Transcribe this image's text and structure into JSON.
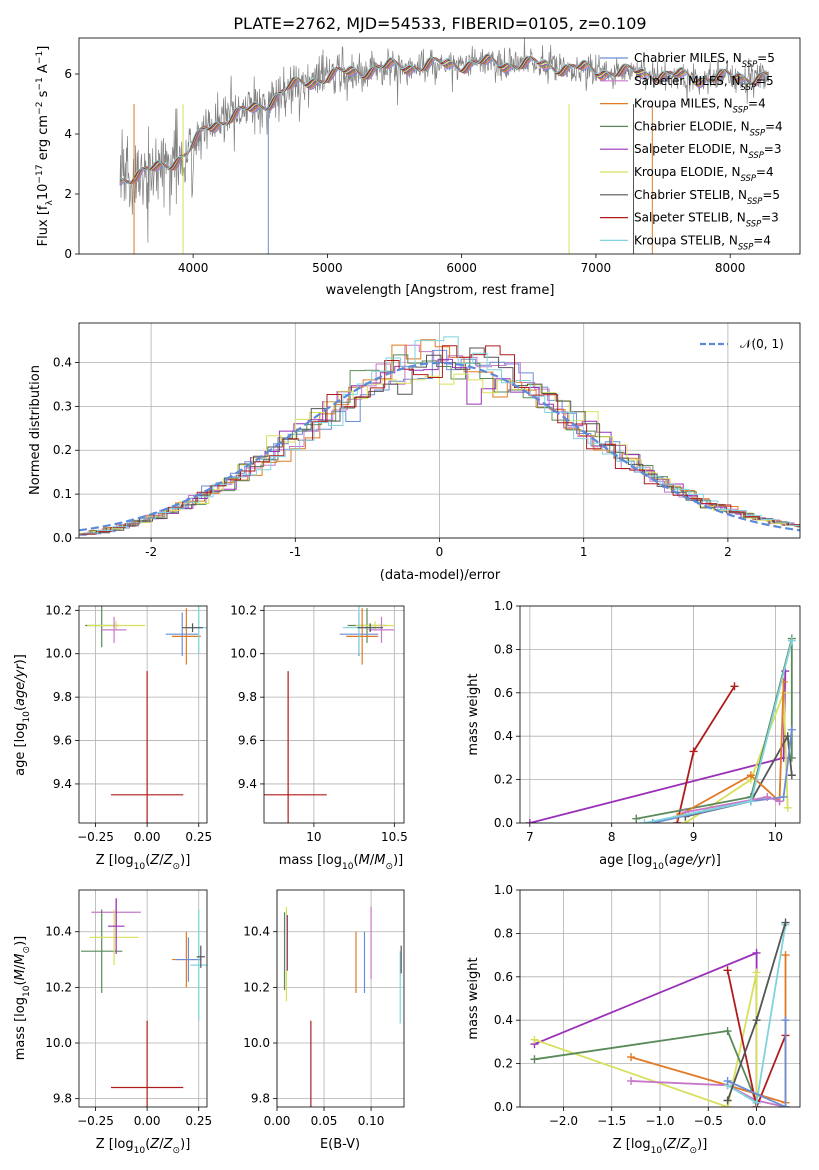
{
  "figure": {
    "title": "PLATE=2762, MJD=54533, FIBERID=0105, z=0.109"
  },
  "colors": {
    "Chabrier MILES": "#6b8ed6",
    "Salpeter MILES": "#c878c8",
    "Kroupa MILES": "#e07a24",
    "Chabrier ELODIE": "#5a8a5a",
    "Salpeter ELODIE": "#9b30b8",
    "Kroupa ELODIE": "#d8e05a",
    "Chabrier STELIB": "#555555",
    "Salpeter STELIB": "#b01c1c",
    "Kroupa STELIB": "#7fd3dc",
    "data": "#808080",
    "normal": "#5b8ad8"
  },
  "chart_data": [
    {
      "type": "line",
      "panel": "spectrum",
      "xlabel": "wavelength [Angstrom, rest frame]",
      "ylabel": "Flux [f_λ 10^-17 erg cm^-2 s^-1 A^-1]",
      "xlim": [
        3150,
        8520
      ],
      "ylim": [
        0,
        7.2
      ],
      "xticks": [
        4000,
        5000,
        6000,
        7000,
        8000
      ],
      "yticks": [
        0,
        2,
        4,
        6
      ],
      "grid": false,
      "legend_position": "right",
      "legend": [
        {
          "label": "Chabrier MILES, N_SSP=5",
          "color": "#6b8ed6"
        },
        {
          "label": "Salpeter MILES, N_SSP=5",
          "color": "#c878c8"
        },
        {
          "label": "Kroupa MILES, N_SSP=4",
          "color": "#e07a24"
        },
        {
          "label": "Chabrier ELODIE, N_SSP=4",
          "color": "#5a8a5a"
        },
        {
          "label": "Salpeter ELODIE, N_SSP=3",
          "color": "#9b30b8"
        },
        {
          "label": "Kroupa ELODIE, N_SSP=4",
          "color": "#d8e05a"
        },
        {
          "label": "Chabrier STELIB, N_SSP=5",
          "color": "#555555"
        },
        {
          "label": "Salpeter STELIB, N_SSP=3",
          "color": "#b01c1c"
        },
        {
          "label": "Kroupa STELIB, N_SSP=4",
          "color": "#7fd3dc"
        }
      ],
      "continuum": {
        "x": [
          3450,
          3600,
          3800,
          3950,
          4100,
          4300,
          4500,
          4700,
          4900,
          5100,
          5400,
          5800,
          6200,
          6600,
          7000,
          7400,
          7800,
          8200,
          8300
        ],
        "y": [
          2.5,
          2.6,
          3.0,
          3.3,
          4.2,
          4.6,
          4.9,
          5.5,
          5.8,
          6.0,
          6.2,
          6.3,
          6.35,
          6.3,
          6.1,
          6.0,
          5.85,
          5.9,
          5.9
        ]
      }
    },
    {
      "type": "bar",
      "panel": "residual_histogram",
      "xlabel": "(data-model)/error",
      "ylabel": "Normed distribution",
      "xlim": [
        -2.5,
        2.5
      ],
      "ylim": [
        0,
        0.49
      ],
      "xticks": [
        -2,
        -1,
        0,
        1,
        2
      ],
      "yticks": [
        0.0,
        0.1,
        0.2,
        0.3,
        0.4
      ],
      "grid": true,
      "legend_position": "top-right",
      "legend": [
        {
          "label": "𝒩(0, 1)",
          "color": "#5b8ad8"
        }
      ],
      "bin_width": 0.1,
      "normal_curve": {
        "mu": 0,
        "sigma": 1
      }
    },
    {
      "type": "scatter",
      "panel": "age_vs_Z",
      "xlabel": "Z [log10(Z/Z⊙)]",
      "ylabel": "age [log10(age/yr)]",
      "xlim": [
        -0.33,
        0.29
      ],
      "ylim": [
        9.22,
        10.22
      ],
      "xticks": [
        -0.25,
        0.0,
        0.25
      ],
      "xticklabels": [
        "−0.25",
        "0.00",
        "0.25"
      ],
      "yticks": [
        9.4,
        9.6,
        9.8,
        10.0,
        10.2
      ],
      "grid": true,
      "points": [
        {
          "series": "Salpeter STELIB",
          "x": 0.0,
          "xerr": 0.175,
          "y": 9.35,
          "yerr": 0.57
        },
        {
          "series": "Chabrier ELODIE",
          "x": -0.22,
          "xerr": 0.08,
          "y": 10.13,
          "yerr": 0.1
        },
        {
          "series": "Kroupa ELODIE",
          "x": -0.15,
          "xerr": 0.14,
          "y": 10.13,
          "yerr": 0.02
        },
        {
          "series": "Salpeter MILES",
          "x": -0.16,
          "xerr": 0.06,
          "y": 10.11,
          "yerr": 0.06
        },
        {
          "series": "Kroupa MILES",
          "x": 0.19,
          "xerr": 0.07,
          "y": 10.08,
          "yerr": 0.13
        },
        {
          "series": "Chabrier MILES",
          "x": 0.17,
          "xerr": 0.08,
          "y": 10.09,
          "yerr": 0.1
        },
        {
          "series": "Kroupa STELIB",
          "x": 0.25,
          "xerr": 0.06,
          "y": 10.12,
          "yerr": 0.12
        },
        {
          "series": "Chabrier STELIB",
          "x": 0.22,
          "xerr": 0.05,
          "y": 10.12,
          "yerr": 0.02
        }
      ]
    },
    {
      "type": "scatter",
      "panel": "age_vs_mass",
      "xlabel": "mass [log10(M/M⊙)]",
      "xlim": [
        9.69,
        10.56
      ],
      "ylim": [
        9.22,
        10.22
      ],
      "xticks": [
        10.0,
        10.5
      ],
      "yticks": [
        9.4,
        9.6,
        9.8,
        10.0,
        10.2
      ],
      "grid": true,
      "points": [
        {
          "series": "Salpeter STELIB",
          "x": 9.84,
          "xerr": 0.24,
          "y": 9.35,
          "yerr": 0.57
        },
        {
          "series": "Chabrier ELODIE",
          "x": 10.33,
          "xerr": 0.12,
          "y": 10.13,
          "yerr": 0.08
        },
        {
          "series": "Kroupa ELODIE",
          "x": 10.38,
          "xerr": 0.12,
          "y": 10.13,
          "yerr": 0.02
        },
        {
          "series": "Salpeter MILES",
          "x": 10.42,
          "xerr": 0.08,
          "y": 10.11,
          "yerr": 0.06
        },
        {
          "series": "Kroupa MILES",
          "x": 10.3,
          "xerr": 0.1,
          "y": 10.08,
          "yerr": 0.13
        },
        {
          "series": "Chabrier MILES",
          "x": 10.28,
          "xerr": 0.12,
          "y": 10.09,
          "yerr": 0.1
        },
        {
          "series": "Kroupa STELIB",
          "x": 10.28,
          "xerr": 0.1,
          "y": 10.12,
          "yerr": 0.12
        },
        {
          "series": "Chabrier STELIB",
          "x": 10.35,
          "xerr": 0.08,
          "y": 10.12,
          "yerr": 0.02
        }
      ]
    },
    {
      "type": "line",
      "panel": "mass_weight_vs_age",
      "xlabel": "age [log10(age/yr)]",
      "ylabel": "mass weight",
      "xlim": [
        6.88,
        10.3
      ],
      "ylim": [
        0,
        1.0
      ],
      "xticks": [
        7,
        8,
        9,
        10
      ],
      "yticks": [
        0.0,
        0.2,
        0.4,
        0.6,
        0.8,
        1.0
      ],
      "grid": true,
      "series": [
        {
          "name": "Salpeter ELODIE",
          "x": [
            7.0,
            10.1,
            10.12
          ],
          "y": [
            0.0,
            0.3,
            0.7
          ]
        },
        {
          "name": "Salpeter STELIB",
          "x": [
            8.8,
            9.0,
            9.5
          ],
          "y": [
            0.0,
            0.33,
            0.63
          ]
        },
        {
          "name": "Kroupa ELODIE",
          "x": [
            8.9,
            9.7,
            10.1,
            10.15
          ],
          "y": [
            0.0,
            0.2,
            0.6,
            0.07
          ]
        },
        {
          "name": "Chabrier STELIB",
          "x": [
            8.9,
            9.7,
            10.15,
            10.2
          ],
          "y": [
            0.03,
            0.1,
            0.4,
            0.22
          ]
        },
        {
          "name": "Chabrier ELODIE",
          "x": [
            8.3,
            9.7,
            10.2,
            10.2
          ],
          "y": [
            0.02,
            0.12,
            0.85,
            0.3
          ]
        },
        {
          "name": "Kroupa MILES",
          "x": [
            8.8,
            9.7,
            10.05,
            10.1
          ],
          "y": [
            0.03,
            0.22,
            0.1,
            0.65
          ]
        },
        {
          "name": "Chabrier MILES",
          "x": [
            8.5,
            9.7,
            10.1,
            10.2
          ],
          "y": [
            0.0,
            0.1,
            0.12,
            0.43
          ]
        },
        {
          "name": "Salpeter MILES",
          "x": [
            8.9,
            9.9,
            10.05
          ],
          "y": [
            0.05,
            0.12,
            0.1
          ]
        },
        {
          "name": "Kroupa STELIB",
          "x": [
            8.4,
            9.7,
            10.2
          ],
          "y": [
            0.0,
            0.1,
            0.84
          ]
        }
      ]
    },
    {
      "type": "scatter",
      "panel": "mass_vs_Z",
      "xlabel": "Z [log10(Z/Z⊙)]",
      "ylabel": "mass [log10(M/M⊙)]",
      "xlim": [
        -0.33,
        0.29
      ],
      "ylim": [
        9.77,
        10.55
      ],
      "xticks": [
        -0.25,
        0.0,
        0.25
      ],
      "xticklabels": [
        "−0.25",
        "0.00",
        "0.25"
      ],
      "yticks": [
        9.8,
        10.0,
        10.2,
        10.4
      ],
      "grid": true,
      "points": [
        {
          "series": "Salpeter STELIB",
          "x": 0.0,
          "xerr": 0.175,
          "y": 9.84,
          "yerr": 0.24
        },
        {
          "series": "Salpeter MILES",
          "x": -0.15,
          "xerr": 0.12,
          "y": 10.47,
          "yerr": 0.05
        },
        {
          "series": "Chabrier ELODIE",
          "x": -0.22,
          "xerr": 0.1,
          "y": 10.33,
          "yerr": 0.15
        },
        {
          "series": "Kroupa ELODIE",
          "x": -0.16,
          "xerr": 0.12,
          "y": 10.38,
          "yerr": 0.1
        },
        {
          "series": "Salpeter ELODIE",
          "x": -0.15,
          "xerr": 0.04,
          "y": 10.42,
          "yerr": 0.1
        },
        {
          "series": "Kroupa MILES",
          "x": 0.19,
          "xerr": 0.07,
          "y": 10.3,
          "yerr": 0.1
        },
        {
          "series": "Chabrier MILES",
          "x": 0.2,
          "xerr": 0.06,
          "y": 10.3,
          "yerr": 0.08
        },
        {
          "series": "Kroupa STELIB",
          "x": 0.25,
          "xerr": 0.04,
          "y": 10.28,
          "yerr": 0.2
        },
        {
          "series": "Chabrier STELIB",
          "x": 0.26,
          "xerr": 0.02,
          "y": 10.31,
          "yerr": 0.04
        }
      ]
    },
    {
      "type": "scatter",
      "panel": "mass_vs_EBV",
      "xlabel": "E(B-V)",
      "xlim": [
        0.0,
        0.135
      ],
      "ylim": [
        9.77,
        10.55
      ],
      "xticks": [
        0.0,
        0.05,
        0.1
      ],
      "xticklabels": [
        "0.00",
        "0.05",
        "0.10"
      ],
      "yticks": [
        9.8,
        10.0,
        10.2,
        10.4
      ],
      "grid": true,
      "points": [
        {
          "series": "Salpeter STELIB",
          "x": 0.036,
          "y": 9.84,
          "yerr": 0.24
        },
        {
          "series": "Chabrier ELODIE",
          "x": 0.008,
          "y": 10.33,
          "yerr": 0.14
        },
        {
          "series": "Kroupa ELODIE",
          "x": 0.01,
          "y": 10.32,
          "yerr": 0.17
        },
        {
          "series": "Salpeter ELODIE",
          "x": 0.011,
          "y": 10.36,
          "yerr": 0.1
        },
        {
          "series": "Kroupa MILES",
          "x": 0.084,
          "y": 10.29,
          "yerr": 0.11
        },
        {
          "series": "Chabrier MILES",
          "x": 0.093,
          "y": 10.29,
          "yerr": 0.11
        },
        {
          "series": "Salpeter MILES",
          "x": 0.1,
          "y": 10.36,
          "yerr": 0.13
        },
        {
          "series": "Kroupa STELIB",
          "x": 0.131,
          "y": 10.2,
          "yerr": 0.13
        },
        {
          "series": "Chabrier STELIB",
          "x": 0.132,
          "y": 10.3,
          "yerr": 0.05
        }
      ]
    },
    {
      "type": "line",
      "panel": "mass_weight_vs_Z",
      "xlabel": "Z [log10(Z/Z⊙)]",
      "ylabel": "mass weight",
      "xlim": [
        -2.45,
        0.45
      ],
      "ylim": [
        0,
        1.0
      ],
      "xticks": [
        -2.0,
        -1.5,
        -1.0,
        -0.5,
        0.0
      ],
      "xticklabels": [
        "−2.0",
        "−1.5",
        "−1.0",
        "−0.5",
        "0.0"
      ],
      "yticks": [
        0.0,
        0.2,
        0.4,
        0.6,
        0.8,
        1.0
      ],
      "grid": true,
      "series": [
        {
          "name": "Salpeter ELODIE",
          "x": [
            -2.3,
            0.0,
            0.0
          ],
          "y": [
            0.29,
            0.71,
            0.02
          ]
        },
        {
          "name": "Kroupa ELODIE",
          "x": [
            -2.3,
            -0.3,
            0.0,
            0.0
          ],
          "y": [
            0.31,
            0.0,
            0.62,
            0.05
          ]
        },
        {
          "name": "Chabrier ELODIE",
          "x": [
            -2.3,
            -0.3,
            0.0
          ],
          "y": [
            0.22,
            0.35,
            0.02
          ]
        },
        {
          "name": "Kroupa MILES",
          "x": [
            -1.3,
            -0.3,
            0.3,
            0.3
          ],
          "y": [
            0.23,
            0.1,
            0.02,
            0.7
          ]
        },
        {
          "name": "Salpeter MILES",
          "x": [
            -1.3,
            -0.3,
            0.0,
            0.3
          ],
          "y": [
            0.12,
            0.1,
            0.03,
            0.0
          ]
        },
        {
          "name": "Salpeter STELIB",
          "x": [
            -0.3,
            0.0,
            0.3
          ],
          "y": [
            0.63,
            0.0,
            0.33
          ]
        },
        {
          "name": "Kroupa STELIB",
          "x": [
            -0.3,
            0.0,
            0.3
          ],
          "y": [
            0.1,
            0.02,
            0.84
          ]
        },
        {
          "name": "Chabrier STELIB",
          "x": [
            -0.3,
            0.0,
            0.3
          ],
          "y": [
            0.03,
            0.4,
            0.85
          ]
        },
        {
          "name": "Chabrier MILES",
          "x": [
            -0.3,
            0.3,
            0.3
          ],
          "y": [
            0.12,
            0.0,
            0.4
          ]
        }
      ]
    }
  ]
}
